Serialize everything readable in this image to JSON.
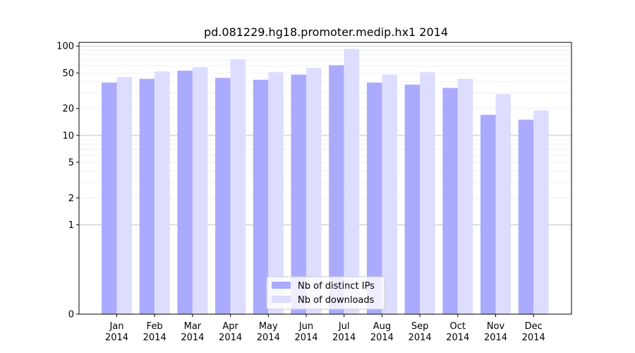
{
  "chart_data": {
    "type": "bar",
    "title": "pd.081229.hg18.promoter.medip.hx1 2014",
    "xlabel": "",
    "ylabel": "",
    "y_scale": "symlog",
    "ylim": [
      0,
      110
    ],
    "categories": [
      "Jan\n2014",
      "Feb\n2014",
      "Mar\n2014",
      "Apr\n2014",
      "May\n2014",
      "Jun\n2014",
      "Jul\n2014",
      "Aug\n2014",
      "Sep\n2014",
      "Oct\n2014",
      "Nov\n2014",
      "Dec\n2014"
    ],
    "y_ticks": [
      {
        "value": 0,
        "label": "0"
      },
      {
        "value": 1,
        "label": "1"
      },
      {
        "value": 2,
        "label": "2"
      },
      {
        "value": 5,
        "label": "5"
      },
      {
        "value": 10,
        "label": "10"
      },
      {
        "value": 20,
        "label": "20"
      },
      {
        "value": 50,
        "label": "50"
      },
      {
        "value": 100,
        "label": "100"
      }
    ],
    "series": [
      {
        "name": "Nb of distinct IPs",
        "color": "#aaaaff",
        "values": [
          39,
          43,
          53,
          44,
          42,
          48,
          61,
          39,
          37,
          34,
          17,
          15
        ]
      },
      {
        "name": "Nb of downloads",
        "color": "#ddddff",
        "values": [
          45,
          52,
          58,
          71,
          51,
          57,
          93,
          48,
          51,
          43,
          29,
          19
        ]
      }
    ],
    "grid": true,
    "legend_position": "bottom-center"
  }
}
